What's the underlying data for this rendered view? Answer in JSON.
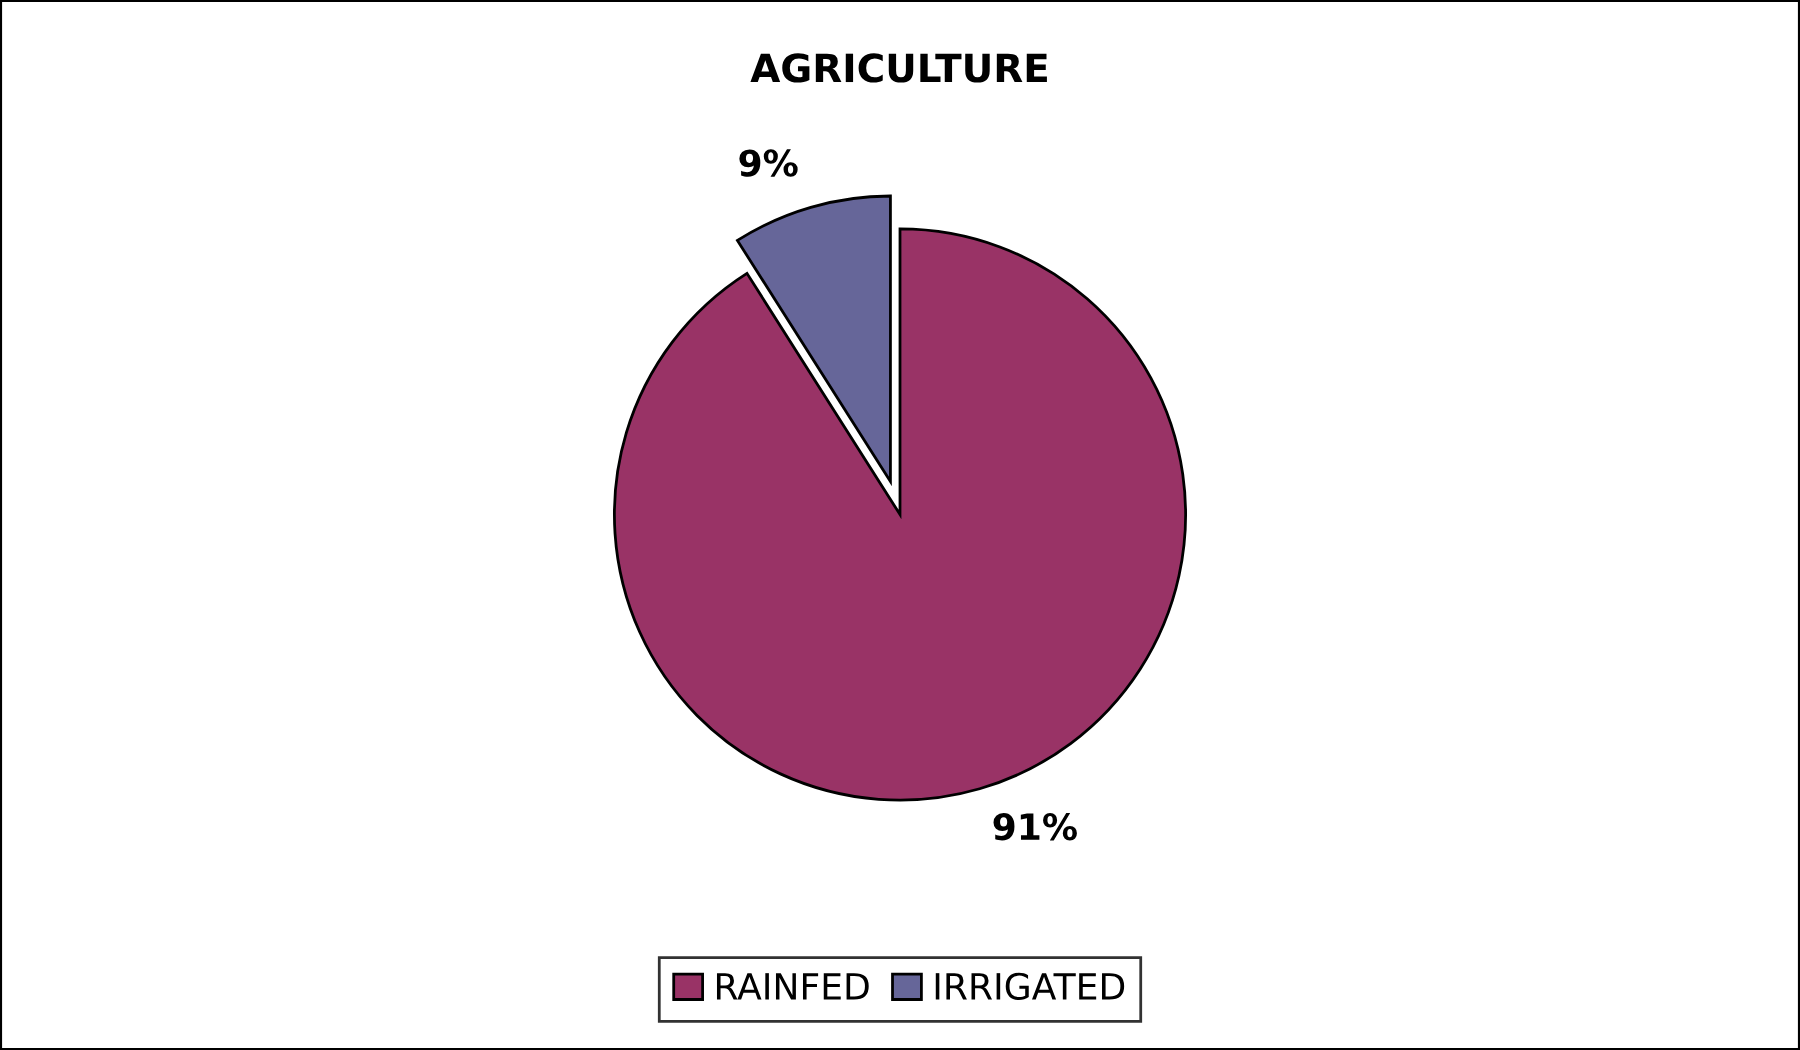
{
  "chart_data": {
    "type": "pie",
    "title": "AGRICULTURE",
    "categories": [
      "RAINFED",
      "IRRIGATED"
    ],
    "values": [
      91,
      9
    ],
    "colors": [
      "#993366",
      "#666699"
    ],
    "value_labels": [
      "91%",
      "9%"
    ],
    "legend": "bottom"
  }
}
